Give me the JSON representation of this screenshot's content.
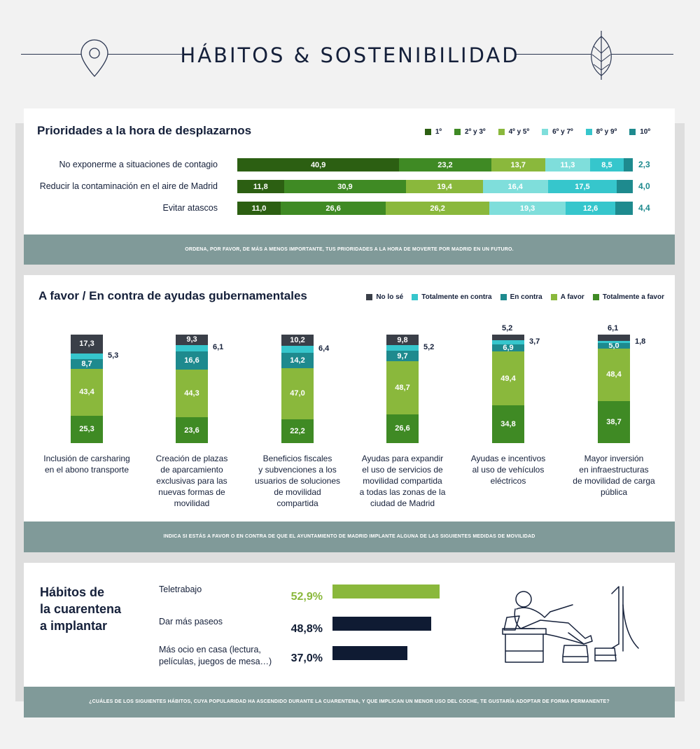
{
  "header": {
    "title": "HÁBITOS & SOSTENIBILIDAD",
    "icon_left": "location-pin-icon",
    "icon_right": "leaf-icon"
  },
  "priorities": {
    "title": "Prioridades a la hora de desplazarnos",
    "footer": "ORDENA, POR FAVOR, DE MÁS A MENOS IMPORTANTE, TUS PRIORIDADES A LA HORA DE MOVERTE POR MADRID EN UN FUTURO."
  },
  "ayudas": {
    "title": "A favor / En contra de ayudas gubernamentales",
    "footer": "INDICA SI ESTÁS A FAVOR O EN CONTRA DE QUE EL AYUNTAMIENTO DE MADRID IMPLANTE ALGUNA DE LAS SIGUIENTES MEDIDAS DE MOVILIDAD"
  },
  "habitos": {
    "title_lines": [
      "Hábitos de",
      "la cuarentena",
      "a implantar"
    ],
    "footer": "¿CUÁLES DE LOS SIGUIENTES HÁBITOS, CUYA POPULARIDAD HA ASCENDIDO DURANTE LA CUARENTENA, Y QUE IMPLICAN UN MENOR USO DEL COCHE, TE GUSTARÍA ADOPTAR DE FORMA PERMANENTE?",
    "illustration": "person-relaxing-armchair-icon"
  },
  "colors": {
    "dark_green": "#2c5f12",
    "green": "#3f8a24",
    "light_green": "#8ab83c",
    "light_teal": "#7fdedb",
    "teal": "#36c6cc",
    "dark_teal": "#1e8a8e",
    "dark": "#3a3f48",
    "navy": "#0f1b33",
    "band": "#809a99"
  },
  "chart_data": [
    {
      "type": "bar",
      "orientation": "horizontal",
      "stacked": true,
      "title": "Prioridades a la hora de desplazarnos",
      "legend_position": "top-right",
      "categories": [
        "No exponerme a situaciones de contagio",
        "Reducir la contaminación en el aire de Madrid",
        "Evitar atascos"
      ],
      "series": [
        {
          "name": "1º",
          "color": "#2c5f12",
          "values": [
            40.9,
            11.8,
            11.0
          ],
          "labels": [
            "40,9",
            "11,8",
            "11,0"
          ]
        },
        {
          "name": "2º y 3º",
          "color": "#3f8a24",
          "values": [
            23.2,
            30.9,
            26.6
          ],
          "labels": [
            "23,2",
            "30,9",
            "26,6"
          ]
        },
        {
          "name": "4º y 5º",
          "color": "#8ab83c",
          "values": [
            13.7,
            19.4,
            26.2
          ],
          "labels": [
            "13,7",
            "19,4",
            "26,2"
          ]
        },
        {
          "name": "6º y 7º",
          "color": "#7fdedb",
          "values": [
            11.3,
            16.4,
            19.3
          ],
          "labels": [
            "11,3",
            "16,4",
            "19,3"
          ]
        },
        {
          "name": "8º y 9º",
          "color": "#36c6cc",
          "values": [
            8.5,
            17.5,
            12.6
          ],
          "labels": [
            "8,5",
            "17,5",
            "12,6"
          ]
        },
        {
          "name": "10º",
          "color": "#1e8a8e",
          "values": [
            2.3,
            4.0,
            4.4
          ],
          "labels": [
            "2,3",
            "4,0",
            "4,4"
          ]
        }
      ]
    },
    {
      "type": "bar",
      "orientation": "vertical",
      "stacked": true,
      "title": "A favor / En contra de ayudas gubernamentales",
      "legend_position": "top-right",
      "categories": [
        [
          "Inclusión de carsharing",
          "en el abono transporte"
        ],
        [
          "Creación de plazas",
          "de aparcamiento",
          "exclusivas para las",
          "nuevas formas de",
          "movilidad"
        ],
        [
          "Beneficios fiscales",
          "y subvenciones a los",
          "usuarios de soluciones",
          "de movilidad",
          "compartida"
        ],
        [
          "Ayudas para expandir",
          "el uso de servicios de",
          "movilidad compartida",
          "a todas las zonas de la",
          "ciudad de Madrid"
        ],
        [
          "Ayudas e incentivos",
          "al uso de vehículos",
          "eléctricos"
        ],
        [
          "Mayor inversión",
          "en infraestructuras",
          "de movilidad de carga",
          "pública"
        ]
      ],
      "series": [
        {
          "name": "Totalmente a favor",
          "color": "#3f8a24",
          "values": [
            25.3,
            23.6,
            22.2,
            26.6,
            34.8,
            38.7
          ],
          "labels": [
            "25,3",
            "23,6",
            "22,2",
            "26,6",
            "34,8",
            "38,7"
          ]
        },
        {
          "name": "A favor",
          "color": "#8ab83c",
          "values": [
            43.4,
            44.3,
            47.0,
            48.7,
            49.4,
            48.4
          ],
          "labels": [
            "43,4",
            "44,3",
            "47,0",
            "48,7",
            "49,4",
            "48,4"
          ]
        },
        {
          "name": "En contra",
          "color": "#1e8a8e",
          "values": [
            8.7,
            16.6,
            14.2,
            9.7,
            6.9,
            5.0
          ],
          "labels": [
            "8,7",
            "16,6",
            "14,2",
            "9,7",
            "6,9",
            "5,0"
          ]
        },
        {
          "name": "Totalmente en contra",
          "color": "#36c6cc",
          "values": [
            5.3,
            6.1,
            6.4,
            5.2,
            3.7,
            1.8
          ],
          "labels": [
            "5,3",
            "6,1",
            "6,4",
            "5,2",
            "3,7",
            "1,8"
          ]
        },
        {
          "name": "No lo sé",
          "color": "#3a3f48",
          "values": [
            17.3,
            9.3,
            10.2,
            9.8,
            5.2,
            6.1
          ],
          "labels": [
            "17,3",
            "9,3",
            "10,2",
            "9,8",
            "5,2",
            "6,1"
          ]
        }
      ],
      "legend_order": [
        "No lo sé",
        "Totalmente en contra",
        "En contra",
        "A favor",
        "Totalmente a favor"
      ]
    },
    {
      "type": "bar",
      "orientation": "horizontal",
      "title": "Hábitos de la cuarentena a implantar",
      "categories": [
        [
          "Teletrabajo"
        ],
        [
          "Dar más paseos"
        ],
        [
          "Más ocio en casa (lectura,",
          "películas, juegos de mesa…)"
        ]
      ],
      "values": [
        52.9,
        48.8,
        37.0
      ],
      "labels": [
        "52,9%",
        "48,8%",
        "37,0%"
      ],
      "colors": [
        "#8ab83c",
        "#0f1b33",
        "#0f1b33"
      ],
      "label_colors": [
        "#8ab83c",
        "#0f1b33",
        "#0f1b33"
      ]
    }
  ]
}
